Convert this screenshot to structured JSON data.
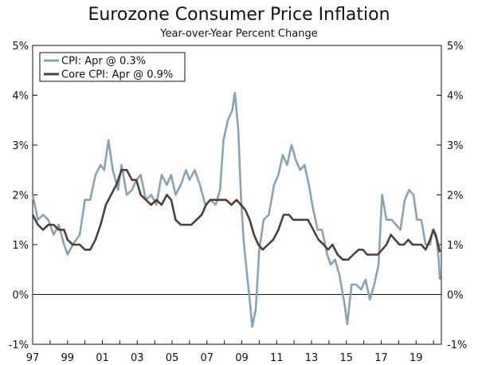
{
  "chart_data": {
    "type": "line",
    "title": "Eurozone Consumer Price Inflation",
    "subtitle": "Year-over-Year Percent Change",
    "xlabel": "",
    "ylabel": "",
    "xlim": [
      1997.0,
      2020.45
    ],
    "ylim": [
      -1,
      5
    ],
    "grid": false,
    "legend_position": "top-left",
    "y_ticks": [
      -1,
      0,
      1,
      2,
      3,
      4,
      5
    ],
    "y_tick_labels": [
      "-1%",
      "0%",
      "1%",
      "2%",
      "3%",
      "4%",
      "5%"
    ],
    "x_ticks": [
      1997,
      1999,
      2001,
      2003,
      2005,
      2007,
      2009,
      2011,
      2013,
      2015,
      2017,
      2019
    ],
    "x_tick_labels": [
      "97",
      "99",
      "01",
      "03",
      "05",
      "07",
      "09",
      "11",
      "13",
      "15",
      "17",
      "19"
    ],
    "colors": {
      "cpi": "#8aa3b4",
      "core": "#4f4037",
      "axis": "#111111"
    },
    "series": [
      {
        "name": "CPI",
        "legend": "CPI: Apr @ 0.3%",
        "color": "#8aa3b4",
        "points": [
          [
            1997.0,
            2.0
          ],
          [
            1997.3,
            1.5
          ],
          [
            1997.6,
            1.6
          ],
          [
            1997.9,
            1.5
          ],
          [
            1998.2,
            1.2
          ],
          [
            1998.5,
            1.4
          ],
          [
            1998.8,
            1.0
          ],
          [
            1999.0,
            0.8
          ],
          [
            1999.3,
            1.0
          ],
          [
            1999.7,
            1.2
          ],
          [
            2000.0,
            1.9
          ],
          [
            2000.3,
            1.9
          ],
          [
            2000.6,
            2.4
          ],
          [
            2000.9,
            2.6
          ],
          [
            2001.1,
            2.5
          ],
          [
            2001.35,
            3.1
          ],
          [
            2001.6,
            2.5
          ],
          [
            2001.9,
            2.1
          ],
          [
            2002.1,
            2.6
          ],
          [
            2002.4,
            2.0
          ],
          [
            2002.7,
            2.1
          ],
          [
            2002.95,
            2.3
          ],
          [
            2003.2,
            2.4
          ],
          [
            2003.5,
            1.9
          ],
          [
            2003.8,
            2.0
          ],
          [
            2004.1,
            1.8
          ],
          [
            2004.4,
            2.4
          ],
          [
            2004.7,
            2.2
          ],
          [
            2004.95,
            2.4
          ],
          [
            2005.2,
            2.0
          ],
          [
            2005.5,
            2.2
          ],
          [
            2005.8,
            2.5
          ],
          [
            2006.0,
            2.3
          ],
          [
            2006.3,
            2.5
          ],
          [
            2006.6,
            2.2
          ],
          [
            2006.9,
            1.8
          ],
          [
            2007.2,
            1.9
          ],
          [
            2007.5,
            1.8
          ],
          [
            2007.75,
            2.1
          ],
          [
            2007.95,
            3.1
          ],
          [
            2008.2,
            3.5
          ],
          [
            2008.45,
            3.7
          ],
          [
            2008.6,
            4.05
          ],
          [
            2008.8,
            3.3
          ],
          [
            2008.95,
            2.0
          ],
          [
            2009.1,
            1.1
          ],
          [
            2009.3,
            0.4
          ],
          [
            2009.45,
            -0.1
          ],
          [
            2009.6,
            -0.65
          ],
          [
            2009.8,
            -0.3
          ],
          [
            2010.0,
            0.9
          ],
          [
            2010.25,
            1.5
          ],
          [
            2010.55,
            1.6
          ],
          [
            2010.85,
            2.2
          ],
          [
            2011.1,
            2.4
          ],
          [
            2011.35,
            2.8
          ],
          [
            2011.6,
            2.6
          ],
          [
            2011.85,
            3.0
          ],
          [
            2012.1,
            2.7
          ],
          [
            2012.35,
            2.5
          ],
          [
            2012.6,
            2.6
          ],
          [
            2012.85,
            2.2
          ],
          [
            2013.1,
            1.7
          ],
          [
            2013.35,
            1.3
          ],
          [
            2013.6,
            1.3
          ],
          [
            2013.9,
            0.8
          ],
          [
            2014.1,
            0.6
          ],
          [
            2014.35,
            0.7
          ],
          [
            2014.6,
            0.4
          ],
          [
            2014.9,
            -0.2
          ],
          [
            2015.05,
            -0.6
          ],
          [
            2015.3,
            0.2
          ],
          [
            2015.55,
            0.2
          ],
          [
            2015.85,
            0.1
          ],
          [
            2016.1,
            0.3
          ],
          [
            2016.35,
            -0.1
          ],
          [
            2016.6,
            0.2
          ],
          [
            2016.85,
            0.6
          ],
          [
            2017.05,
            2.0
          ],
          [
            2017.3,
            1.5
          ],
          [
            2017.6,
            1.5
          ],
          [
            2017.85,
            1.4
          ],
          [
            2018.1,
            1.3
          ],
          [
            2018.35,
            1.9
          ],
          [
            2018.6,
            2.1
          ],
          [
            2018.85,
            2.0
          ],
          [
            2019.05,
            1.5
          ],
          [
            2019.3,
            1.5
          ],
          [
            2019.55,
            1.0
          ],
          [
            2019.8,
            1.0
          ],
          [
            2019.95,
            1.3
          ],
          [
            2020.15,
            1.2
          ],
          [
            2020.3,
            0.7
          ],
          [
            2020.37,
            0.3
          ]
        ]
      },
      {
        "name": "Core CPI",
        "legend": "Core CPI: Apr @ 0.9%",
        "color": "#4f4037",
        "points": [
          [
            1997.0,
            1.6
          ],
          [
            1997.3,
            1.4
          ],
          [
            1997.6,
            1.3
          ],
          [
            1997.9,
            1.4
          ],
          [
            1998.2,
            1.4
          ],
          [
            1998.5,
            1.3
          ],
          [
            1998.8,
            1.3
          ],
          [
            1999.0,
            1.1
          ],
          [
            1999.3,
            1.0
          ],
          [
            1999.7,
            1.0
          ],
          [
            2000.0,
            0.9
          ],
          [
            2000.3,
            0.9
          ],
          [
            2000.6,
            1.1
          ],
          [
            2000.9,
            1.4
          ],
          [
            2001.2,
            1.8
          ],
          [
            2001.5,
            2.0
          ],
          [
            2001.8,
            2.2
          ],
          [
            2002.1,
            2.5
          ],
          [
            2002.4,
            2.5
          ],
          [
            2002.7,
            2.3
          ],
          [
            2002.95,
            2.3
          ],
          [
            2003.2,
            2.0
          ],
          [
            2003.5,
            1.9
          ],
          [
            2003.8,
            1.8
          ],
          [
            2004.1,
            1.9
          ],
          [
            2004.4,
            1.8
          ],
          [
            2004.7,
            2.0
          ],
          [
            2004.95,
            1.9
          ],
          [
            2005.2,
            1.5
          ],
          [
            2005.5,
            1.4
          ],
          [
            2005.8,
            1.4
          ],
          [
            2006.1,
            1.4
          ],
          [
            2006.4,
            1.5
          ],
          [
            2006.7,
            1.6
          ],
          [
            2006.95,
            1.8
          ],
          [
            2007.2,
            1.9
          ],
          [
            2007.5,
            1.9
          ],
          [
            2007.8,
            1.9
          ],
          [
            2008.1,
            1.9
          ],
          [
            2008.4,
            1.8
          ],
          [
            2008.7,
            1.9
          ],
          [
            2008.95,
            1.8
          ],
          [
            2009.2,
            1.7
          ],
          [
            2009.45,
            1.5
          ],
          [
            2009.7,
            1.2
          ],
          [
            2009.95,
            1.0
          ],
          [
            2010.2,
            0.9
          ],
          [
            2010.5,
            1.0
          ],
          [
            2010.8,
            1.1
          ],
          [
            2011.1,
            1.3
          ],
          [
            2011.4,
            1.6
          ],
          [
            2011.7,
            1.6
          ],
          [
            2011.95,
            1.5
          ],
          [
            2012.2,
            1.5
          ],
          [
            2012.5,
            1.5
          ],
          [
            2012.8,
            1.5
          ],
          [
            2013.1,
            1.3
          ],
          [
            2013.4,
            1.1
          ],
          [
            2013.7,
            1.0
          ],
          [
            2013.95,
            0.9
          ],
          [
            2014.2,
            1.0
          ],
          [
            2014.5,
            0.8
          ],
          [
            2014.8,
            0.7
          ],
          [
            2015.1,
            0.7
          ],
          [
            2015.4,
            0.8
          ],
          [
            2015.7,
            0.9
          ],
          [
            2015.95,
            0.9
          ],
          [
            2016.2,
            0.8
          ],
          [
            2016.5,
            0.8
          ],
          [
            2016.8,
            0.8
          ],
          [
            2017.05,
            0.9
          ],
          [
            2017.3,
            1.0
          ],
          [
            2017.55,
            1.2
          ],
          [
            2017.8,
            1.1
          ],
          [
            2018.05,
            1.0
          ],
          [
            2018.3,
            1.0
          ],
          [
            2018.55,
            1.1
          ],
          [
            2018.8,
            1.0
          ],
          [
            2019.05,
            1.0
          ],
          [
            2019.3,
            1.0
          ],
          [
            2019.55,
            0.9
          ],
          [
            2019.8,
            1.1
          ],
          [
            2020.0,
            1.3
          ],
          [
            2020.2,
            1.1
          ],
          [
            2020.37,
            0.85
          ]
        ]
      }
    ]
  }
}
